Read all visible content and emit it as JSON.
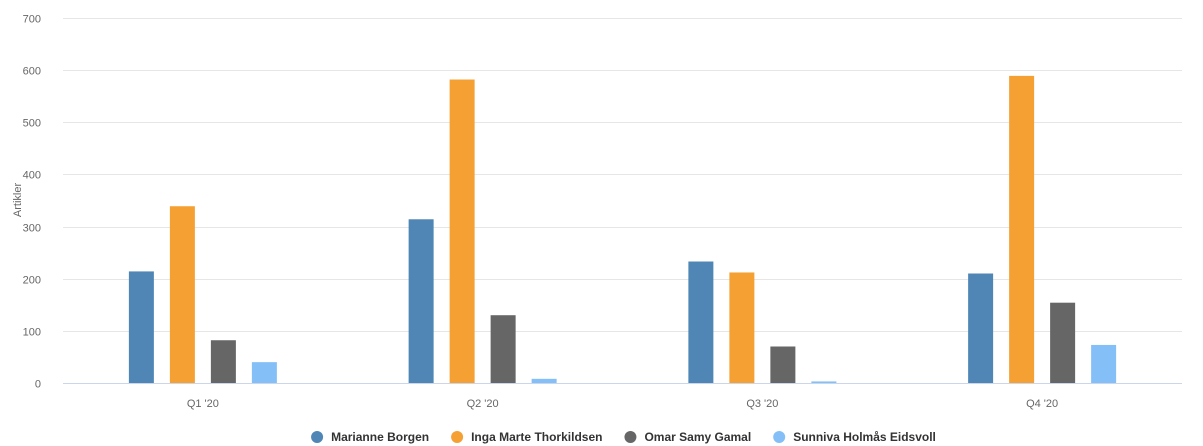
{
  "chart_data": {
    "type": "bar",
    "title": "",
    "xlabel": "",
    "ylabel": "Artikler",
    "categories": [
      "Q1 '20",
      "Q2 '20",
      "Q3 '20",
      "Q4 '20"
    ],
    "ylim": [
      0,
      700
    ],
    "yticks": [
      0,
      100,
      200,
      300,
      400,
      500,
      600,
      700
    ],
    "grid": true,
    "legend_position": "bottom-center",
    "series": [
      {
        "name": "Marianne Borgen",
        "color": "#4f86b5",
        "values": [
          214,
          314,
          233,
          210
        ]
      },
      {
        "name": "Inga Marte Thorkildsen",
        "color": "#f5a033",
        "values": [
          339,
          582,
          212,
          589
        ]
      },
      {
        "name": "Omar Samy Gamal",
        "color": "#666666",
        "values": [
          82,
          130,
          70,
          154
        ]
      },
      {
        "name": "Sunniva Holmås Eidsvoll",
        "color": "#85bff7",
        "values": [
          40,
          8,
          3,
          73
        ]
      }
    ]
  }
}
